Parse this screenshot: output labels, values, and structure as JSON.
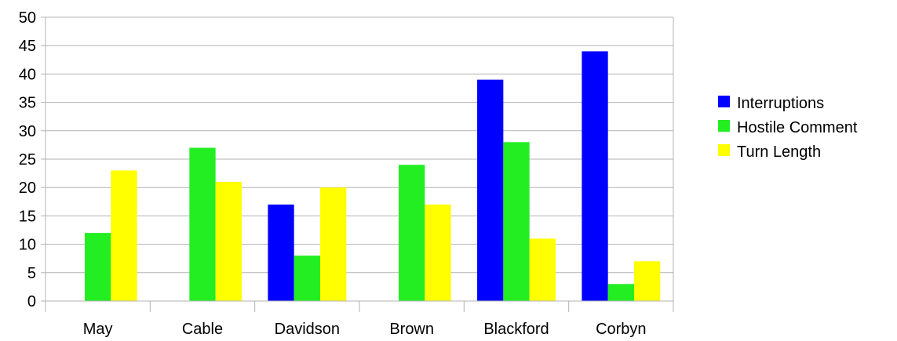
{
  "chart_data": {
    "type": "bar",
    "categories": [
      "May",
      "Cable",
      "Davidson",
      "Brown",
      "Blackford",
      "Corbyn"
    ],
    "series": [
      {
        "name": "Interruptions",
        "color": "#0000ff",
        "values": [
          0,
          0,
          17,
          0,
          39,
          44
        ]
      },
      {
        "name": "Hostile Comment",
        "color": "#22ee22",
        "values": [
          12,
          27,
          8,
          24,
          28,
          3
        ]
      },
      {
        "name": "Turn Length",
        "color": "#ffff00",
        "values": [
          23,
          21,
          20,
          17,
          11,
          7
        ]
      }
    ],
    "ylim": [
      0,
      50
    ],
    "yticks": [
      "0",
      "5",
      "10",
      "15",
      "20",
      "25",
      "30",
      "35",
      "40",
      "45",
      "50"
    ],
    "grid": true,
    "legend_position": "right"
  }
}
